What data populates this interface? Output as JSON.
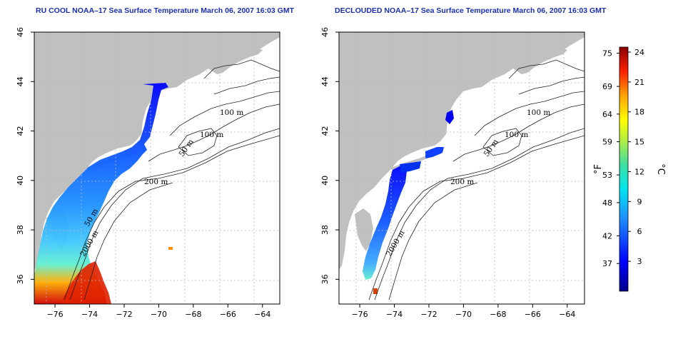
{
  "panels": [
    {
      "id": "left",
      "title": "RU COOL NOAA–17 Sea Surface Temperature March 06, 2007 16:03 GMT",
      "contour_labels": [
        "100 m",
        "100 m",
        "50 m",
        "200 m",
        "50 m",
        "2000 m"
      ]
    },
    {
      "id": "right",
      "title": "DECLOUDED NOAA–17 Sea Surface Temperature March 06, 2007 16:03 GMT",
      "contour_labels": [
        "100 m",
        "100 m",
        "50 m",
        "200 m",
        "2000 m"
      ]
    }
  ],
  "axes": {
    "x_ticks": [
      "−76",
      "−74",
      "−72",
      "−70",
      "−68",
      "−66",
      "−64"
    ],
    "y_ticks": [
      "36",
      "38",
      "40",
      "42",
      "44",
      "46"
    ],
    "lon_range": [
      -77.2,
      -63.0
    ],
    "lat_range": [
      35.0,
      46.0
    ]
  },
  "colorbar": {
    "fahrenheit_ticks": [
      "75",
      "69",
      "64",
      "59",
      "53",
      "48",
      "42",
      "37"
    ],
    "celsius_ticks": [
      "24",
      "21",
      "18",
      "15",
      "12",
      "9",
      "6",
      "3"
    ],
    "f_unit": "°F",
    "c_unit": "°C",
    "range_c": [
      0,
      24.5
    ]
  },
  "colors": {
    "land": "#c0c0c0",
    "grid": "#b8b8b8",
    "contour": "#222222",
    "title": "#1a2fb0"
  }
}
